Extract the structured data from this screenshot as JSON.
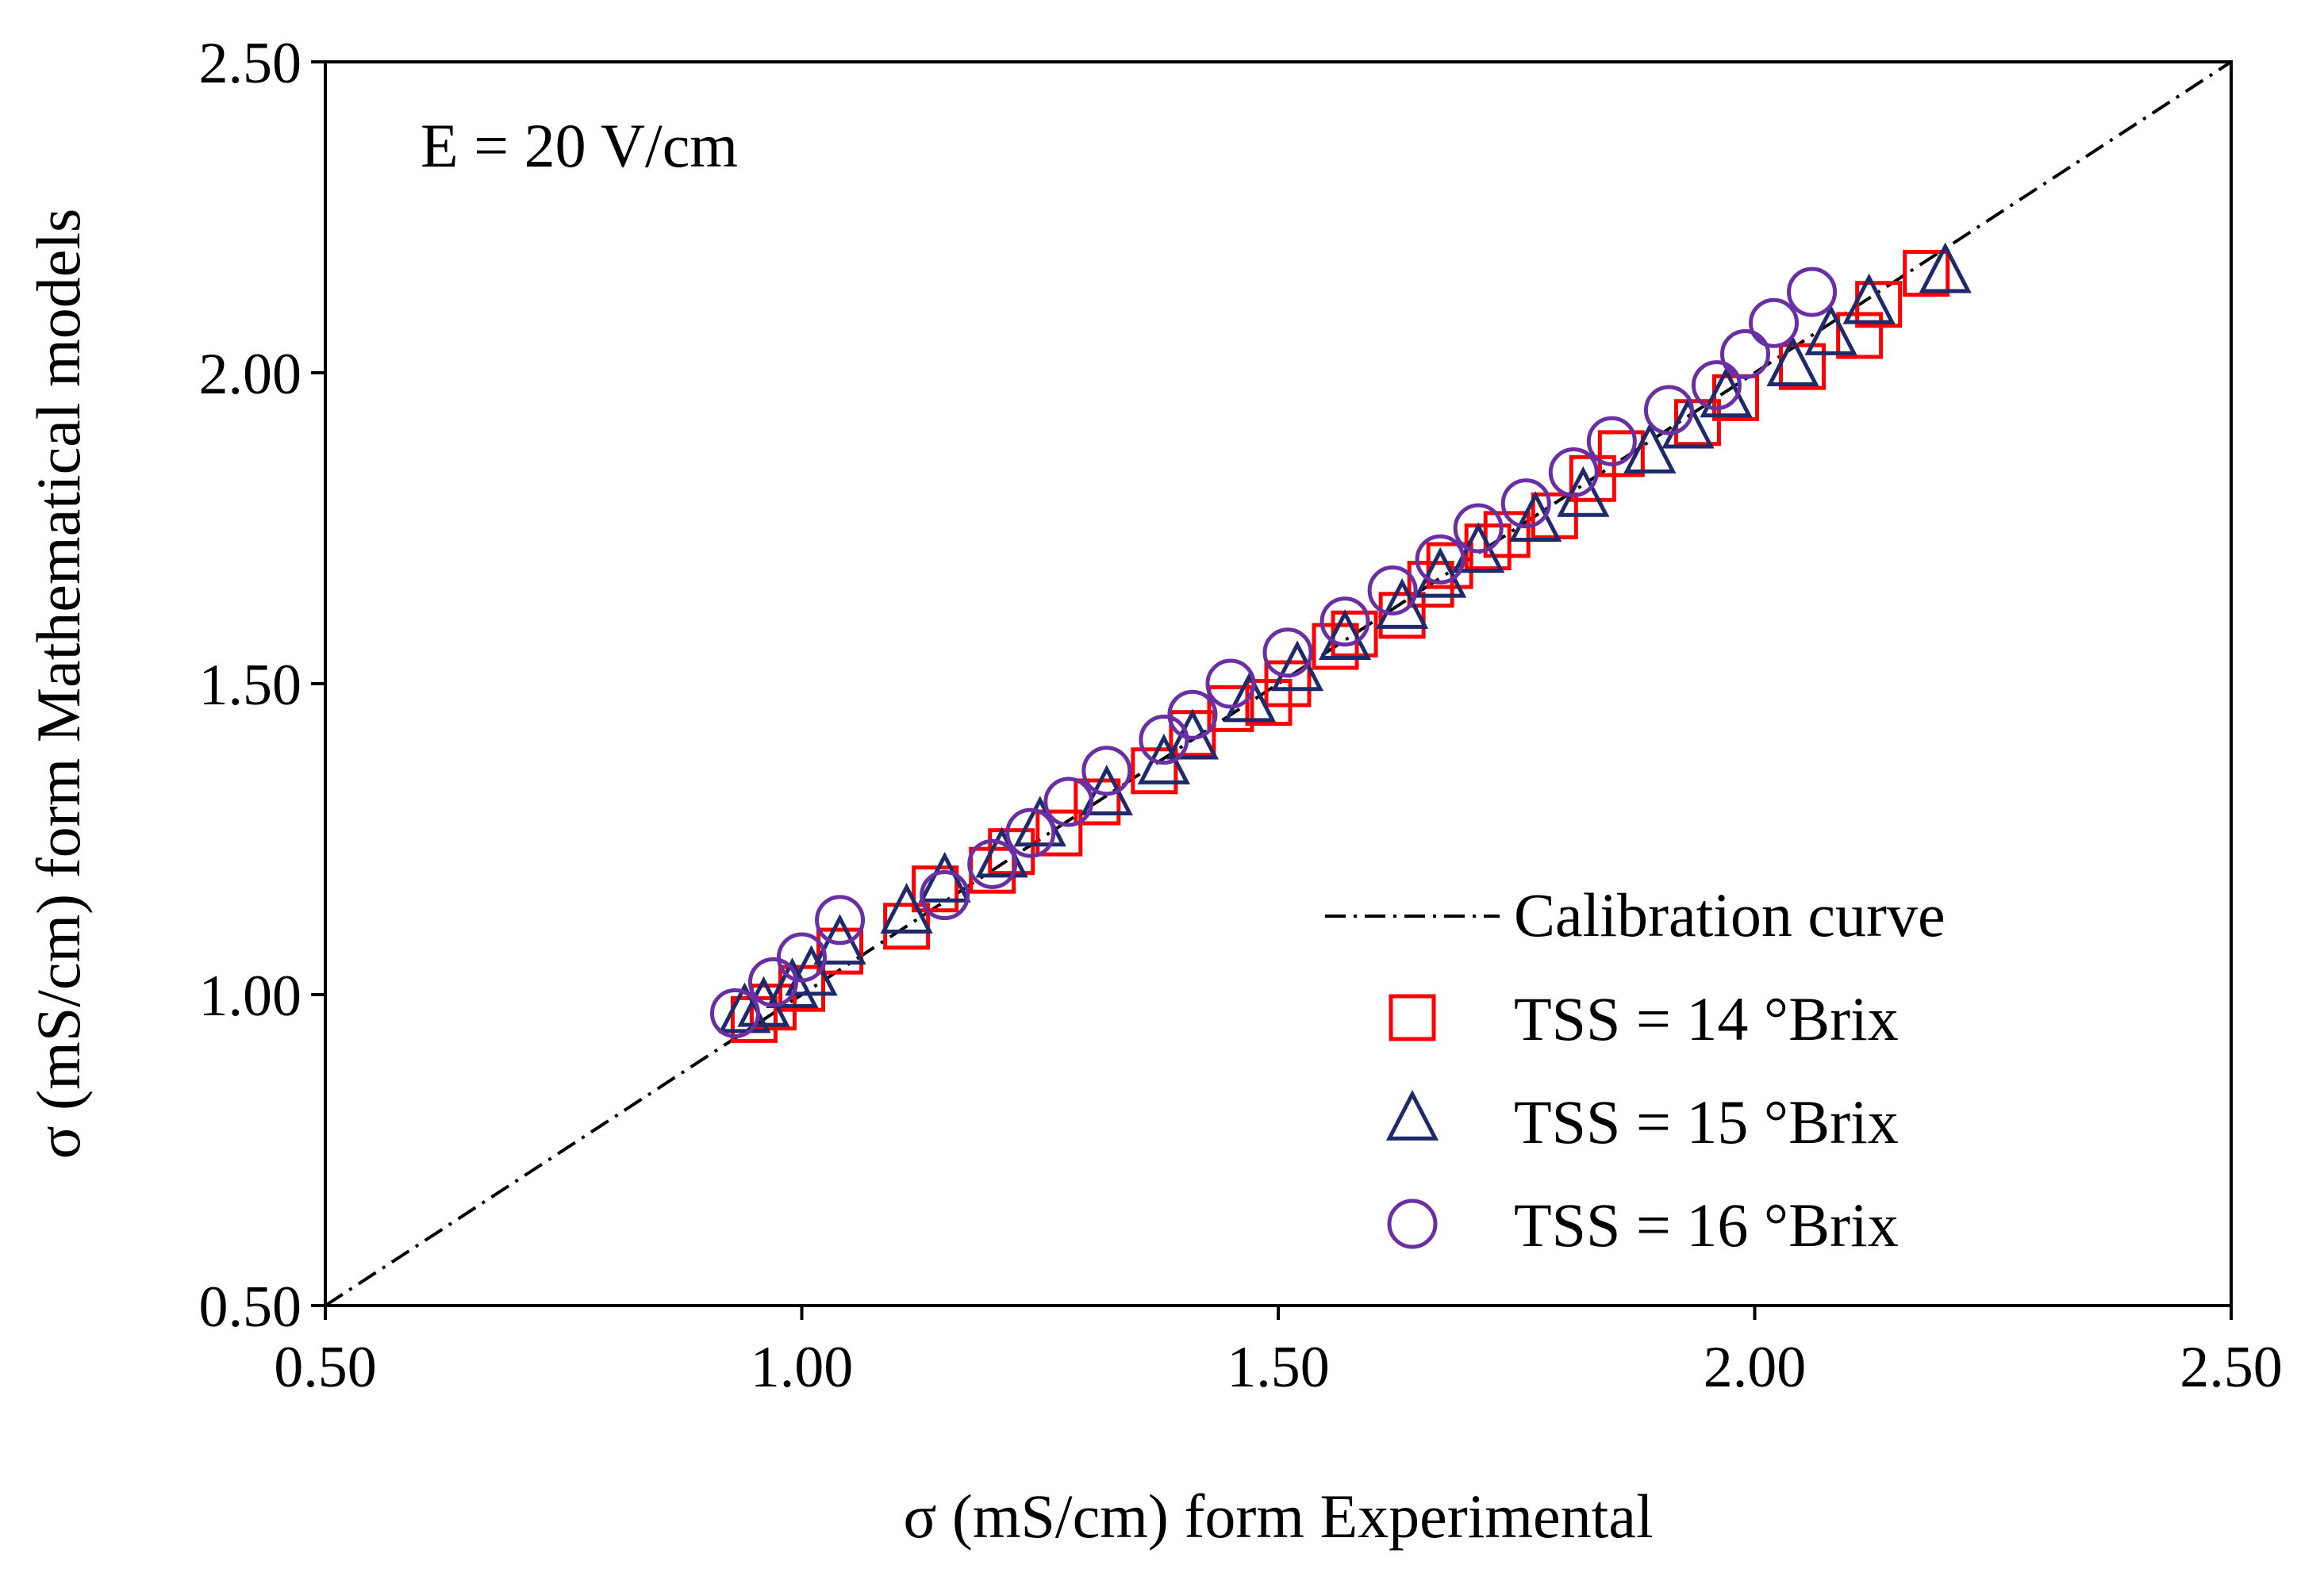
{
  "chart_data": {
    "type": "scatter",
    "title": "",
    "annotation": "E = 20 V/cm",
    "xlabel": "σ (mS/cm) form Experimental",
    "ylabel": "σ (mS/cm) form Mathematical models",
    "xlim": [
      0.5,
      2.5
    ],
    "ylim": [
      0.5,
      2.5
    ],
    "xticks": [
      "0.50",
      "1.00",
      "1.50",
      "2.00",
      "2.50"
    ],
    "yticks": [
      "0.50",
      "1.00",
      "1.50",
      "2.00",
      "2.50"
    ],
    "grid": false,
    "legend_position": "bottom-right",
    "calibration_curve": {
      "name": "Calibration curve",
      "x": [
        0.5,
        2.5
      ],
      "y": [
        0.5,
        2.5
      ],
      "color": "#000000"
    },
    "series": [
      {
        "name": "TSS = 14 °Brix",
        "marker": "square",
        "color": "#ff0000",
        "points": [
          [
            0.95,
            0.96
          ],
          [
            0.97,
            0.98
          ],
          [
            1.0,
            1.01
          ],
          [
            1.04,
            1.07
          ],
          [
            1.11,
            1.11
          ],
          [
            1.14,
            1.17
          ],
          [
            1.2,
            1.2
          ],
          [
            1.22,
            1.23
          ],
          [
            1.27,
            1.26
          ],
          [
            1.31,
            1.31
          ],
          [
            1.37,
            1.36
          ],
          [
            1.41,
            1.42
          ],
          [
            1.45,
            1.46
          ],
          [
            1.49,
            1.47
          ],
          [
            1.51,
            1.5
          ],
          [
            1.56,
            1.56
          ],
          [
            1.58,
            1.58
          ],
          [
            1.63,
            1.61
          ],
          [
            1.66,
            1.66
          ],
          [
            1.68,
            1.69
          ],
          [
            1.72,
            1.72
          ],
          [
            1.74,
            1.74
          ],
          [
            1.79,
            1.77
          ],
          [
            1.83,
            1.83
          ],
          [
            1.86,
            1.87
          ],
          [
            1.94,
            1.92
          ],
          [
            1.98,
            1.96
          ],
          [
            2.05,
            2.01
          ],
          [
            2.11,
            2.06
          ],
          [
            2.13,
            2.11
          ],
          [
            2.18,
            2.16
          ]
        ]
      },
      {
        "name": "TSS = 15 °Brix",
        "marker": "triangle",
        "color": "#1f2a6b",
        "points": [
          [
            0.94,
            0.97
          ],
          [
            0.96,
            0.98
          ],
          [
            0.99,
            1.01
          ],
          [
            1.01,
            1.03
          ],
          [
            1.04,
            1.08
          ],
          [
            1.11,
            1.13
          ],
          [
            1.15,
            1.18
          ],
          [
            1.21,
            1.22
          ],
          [
            1.25,
            1.27
          ],
          [
            1.32,
            1.32
          ],
          [
            1.38,
            1.37
          ],
          [
            1.41,
            1.41
          ],
          [
            1.47,
            1.47
          ],
          [
            1.52,
            1.52
          ],
          [
            1.57,
            1.57
          ],
          [
            1.63,
            1.62
          ],
          [
            1.67,
            1.67
          ],
          [
            1.71,
            1.71
          ],
          [
            1.77,
            1.76
          ],
          [
            1.82,
            1.8
          ],
          [
            1.89,
            1.87
          ],
          [
            1.93,
            1.91
          ],
          [
            1.97,
            1.96
          ],
          [
            2.04,
            2.01
          ],
          [
            2.08,
            2.06
          ],
          [
            2.12,
            2.11
          ],
          [
            2.2,
            2.16
          ]
        ]
      },
      {
        "name": "TSS = 16 °Brix",
        "marker": "circle",
        "color": "#6a2fa3",
        "points": [
          [
            0.93,
            0.97
          ],
          [
            0.97,
            1.02
          ],
          [
            1.0,
            1.06
          ],
          [
            1.04,
            1.12
          ],
          [
            1.15,
            1.16
          ],
          [
            1.2,
            1.21
          ],
          [
            1.24,
            1.26
          ],
          [
            1.28,
            1.31
          ],
          [
            1.32,
            1.36
          ],
          [
            1.38,
            1.41
          ],
          [
            1.41,
            1.45
          ],
          [
            1.45,
            1.5
          ],
          [
            1.51,
            1.55
          ],
          [
            1.57,
            1.6
          ],
          [
            1.62,
            1.65
          ],
          [
            1.67,
            1.7
          ],
          [
            1.71,
            1.75
          ],
          [
            1.76,
            1.79
          ],
          [
            1.81,
            1.84
          ],
          [
            1.85,
            1.89
          ],
          [
            1.91,
            1.94
          ],
          [
            1.96,
            1.98
          ],
          [
            1.99,
            2.03
          ],
          [
            2.02,
            2.08
          ],
          [
            2.06,
            2.13
          ]
        ]
      }
    ]
  }
}
